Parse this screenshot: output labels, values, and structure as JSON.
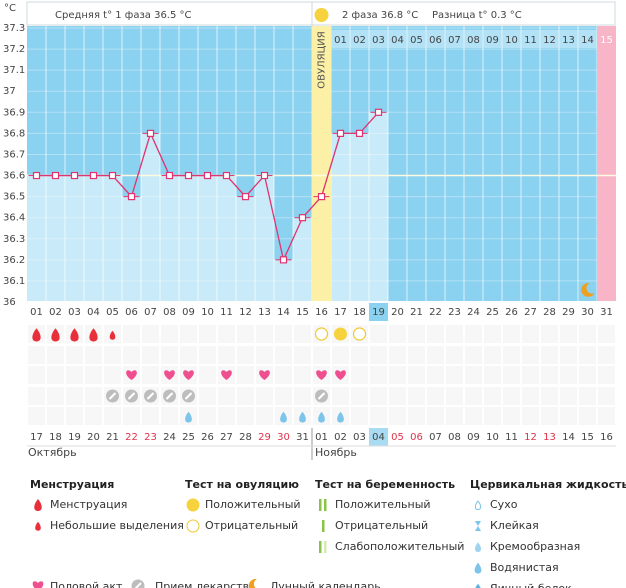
{
  "chart_data": {
    "type": "line",
    "y_unit": "°C",
    "ylim": [
      36,
      37.3
    ],
    "yticks": [
      36,
      36.1,
      36.2,
      36.3,
      36.4,
      36.5,
      36.6,
      36.7,
      36.8,
      36.9,
      37,
      37.1,
      37.2,
      37.3
    ],
    "categories": [
      "01",
      "02",
      "03",
      "04",
      "05",
      "06",
      "07",
      "08",
      "09",
      "10",
      "11",
      "12",
      "13",
      "14",
      "15",
      "16",
      "17",
      "18",
      "19",
      "20",
      "21",
      "22",
      "23",
      "24",
      "25",
      "26",
      "27",
      "28",
      "29",
      "30",
      "31"
    ],
    "values": [
      36.6,
      36.6,
      36.6,
      36.6,
      36.6,
      36.5,
      36.8,
      36.6,
      36.6,
      36.6,
      36.6,
      36.5,
      36.6,
      36.2,
      36.4,
      36.5,
      36.8,
      36.8,
      36.9,
      null,
      null,
      null,
      null,
      null,
      null,
      null,
      null,
      null,
      null,
      null,
      null
    ],
    "color": "#e0336f",
    "coverline": 36.6,
    "phase1_label": "Средняя t° 1 фаза 36.5 °C",
    "phase2_label": "2 фаза 36.8 °C",
    "difference_label": "Разница t° 0.3 °C",
    "ovulation_label": "ОВУЛЯЦИЯ",
    "ovulation_day": "16",
    "today": "19",
    "expected_period_day": "31",
    "moon_day": "30",
    "phase2_days": [
      "01",
      "02",
      "03",
      "04",
      "05",
      "06",
      "07",
      "08",
      "09",
      "10",
      "11",
      "12",
      "13",
      "14",
      "15"
    ],
    "events": {
      "menstruation": [
        "01",
        "02",
        "03",
        "04"
      ],
      "spotting": [
        "05"
      ],
      "ovulation_test_positive": [
        "17"
      ],
      "ovulation_test_negative": [
        "16",
        "18"
      ],
      "intercourse": [
        "06",
        "08",
        "09",
        "11",
        "13",
        "16",
        "17"
      ],
      "medication": [
        "05",
        "06",
        "07",
        "08",
        "09",
        "16"
      ],
      "cervical_watery": [
        "09",
        "14",
        "15",
        "16",
        "17"
      ]
    },
    "calendar": {
      "dates": [
        "17",
        "18",
        "19",
        "20",
        "21",
        "22",
        "23",
        "24",
        "25",
        "26",
        "27",
        "28",
        "29",
        "30",
        "31",
        "01",
        "02",
        "03",
        "04",
        "05",
        "06",
        "07",
        "08",
        "09",
        "10",
        "11",
        "12",
        "13",
        "14",
        "15",
        "16"
      ],
      "weekend": [
        false,
        false,
        false,
        false,
        false,
        true,
        true,
        false,
        false,
        false,
        false,
        false,
        true,
        true,
        false,
        false,
        false,
        false,
        false,
        true,
        true,
        false,
        false,
        false,
        false,
        false,
        true,
        true,
        false,
        false,
        false
      ],
      "months": [
        "Октябрь",
        "Ноябрь"
      ]
    }
  },
  "legend": [
    {
      "title": "Менструация",
      "items": [
        "Менструация",
        "Небольшие выделения"
      ]
    },
    {
      "title": "Тест на овуляцию",
      "items": [
        "Положительный",
        "Отрицательный"
      ]
    },
    {
      "title": "Тест на беременность",
      "items": [
        "Положительный",
        "Отрицательный",
        "Слабоположительный"
      ]
    },
    {
      "title": "Цервикальная жидкость",
      "items": [
        "Сухо",
        "Клейкая",
        "Кремообразная",
        "Водянистая",
        "Яичный белок"
      ]
    }
  ],
  "legend_bottom": [
    "Половой акт",
    "Прием лекарств",
    "Лунный календарь"
  ]
}
